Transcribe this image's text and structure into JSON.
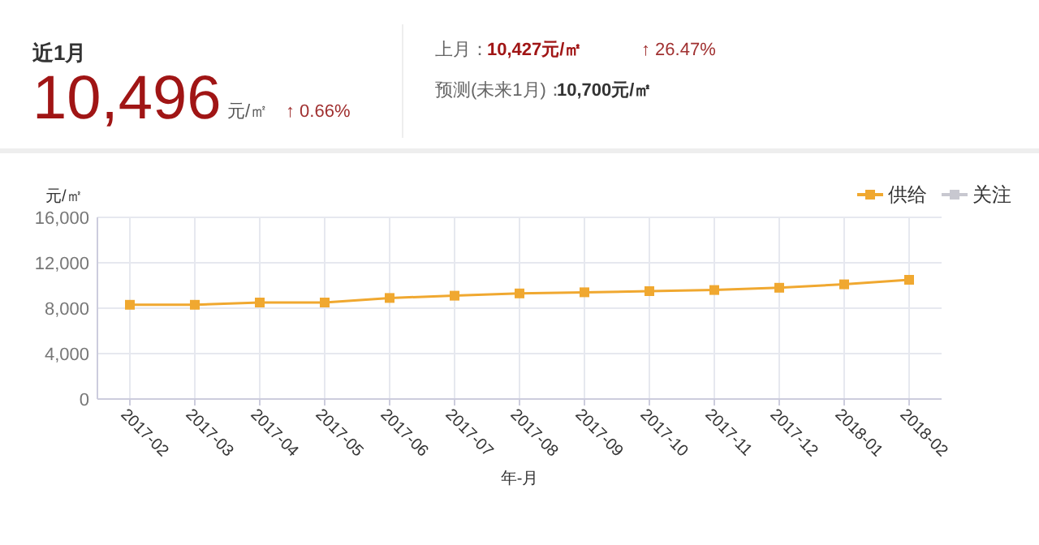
{
  "chart_data": {
    "type": "line",
    "ylabel": "元/㎡",
    "xlabel": "年-月",
    "annotations": [
      "近1月",
      "10,496",
      "元/㎡",
      "↑ 0.66%",
      "上月：",
      "10,427元/㎡",
      "↑ 26.47%",
      "预测(未来1月)：",
      "10,700元/㎡"
    ],
    "categories": [
      "2017-02",
      "2017-03",
      "2017-04",
      "2017-05",
      "2017-06",
      "2017-07",
      "2017-08",
      "2017-09",
      "2017-10",
      "2017-11",
      "2017-12",
      "2018-01",
      "2018-02"
    ],
    "series": [
      {
        "name": "供给",
        "color": "#f0a830",
        "values": [
          8300,
          8300,
          8500,
          8500,
          8900,
          9100,
          9300,
          9400,
          9500,
          9600,
          9800,
          10100,
          10500
        ]
      },
      {
        "name": "关注",
        "color": "#c8c8d0",
        "values": [
          null,
          null,
          null,
          null,
          null,
          null,
          null,
          null,
          null,
          null,
          null,
          null,
          null
        ]
      }
    ],
    "ylim": [
      0,
      16000
    ],
    "yticks": [
      {
        "value": 0,
        "label": "0"
      },
      {
        "value": 4000,
        "label": "4,000"
      },
      {
        "value": 8000,
        "label": "8,000"
      },
      {
        "value": 12000,
        "label": "12,000"
      },
      {
        "value": 16000,
        "label": "16,000"
      }
    ],
    "grid": true,
    "legend": "top right",
    "marker": "square"
  }
}
